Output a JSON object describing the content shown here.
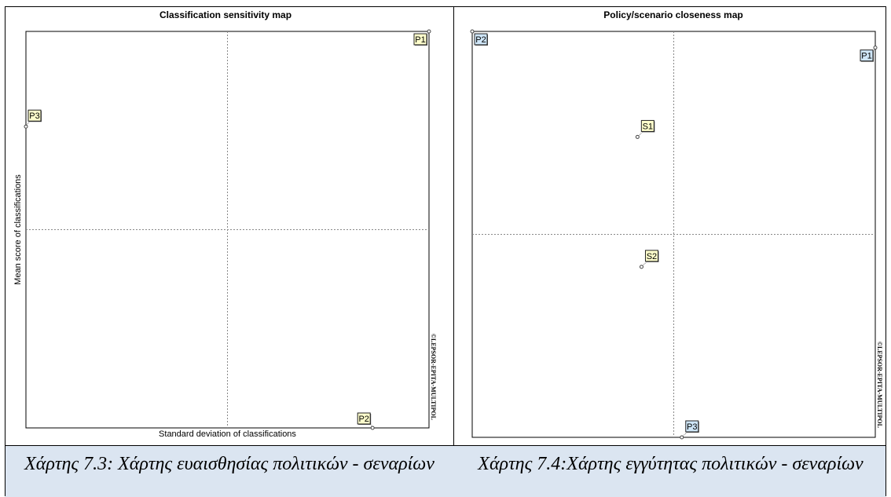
{
  "charts": [
    {
      "chart_data": {
        "type": "scatter",
        "title": "Classification sensitivity map",
        "xlabel": "Standard deviation of classifications",
        "ylabel": "Mean score of classifications",
        "xlim": [
          0,
          1
        ],
        "ylim": [
          0,
          1
        ],
        "grid": "quadrant",
        "points": [
          {
            "label": "P1",
            "x": 1.0,
            "y": 1.0
          },
          {
            "label": "P3",
            "x": 0.0,
            "y": 0.76
          },
          {
            "label": "P2",
            "x": 0.86,
            "y": 0.0
          }
        ]
      },
      "copyright": "©LEPSOR-EPITA-MULTIPOL",
      "label_fill": "#ffffcc"
    },
    {
      "chart_data": {
        "type": "scatter",
        "title": "Policy/scenario closeness map",
        "xlabel": "",
        "ylabel": "",
        "xlim": [
          0,
          1
        ],
        "ylim": [
          0,
          1
        ],
        "grid": "quadrant",
        "points": [
          {
            "label": "P2",
            "x": 0.0,
            "y": 1.0,
            "fill": "#cfe6f8"
          },
          {
            "label": "P1",
            "x": 1.0,
            "y": 0.96,
            "fill": "#cfe6f8"
          },
          {
            "label": "S1",
            "x": 0.41,
            "y": 0.74,
            "fill": "#ffffcc"
          },
          {
            "label": "S2",
            "x": 0.42,
            "y": 0.42,
            "fill": "#ffffcc"
          },
          {
            "label": "P3",
            "x": 0.52,
            "y": 0.0,
            "fill": "#cfe6f8"
          }
        ]
      },
      "copyright": "©LEPSOR-EPITA-MULTIPOL"
    }
  ],
  "captions": {
    "left": "Χάρτης 7.3: Χάρτης ευαισθησίας πολιτικών - σεναρίων",
    "right": "Χάρτης 7.4:Χάρτης εγγύτητας πολιτικών - σεναρίων"
  }
}
